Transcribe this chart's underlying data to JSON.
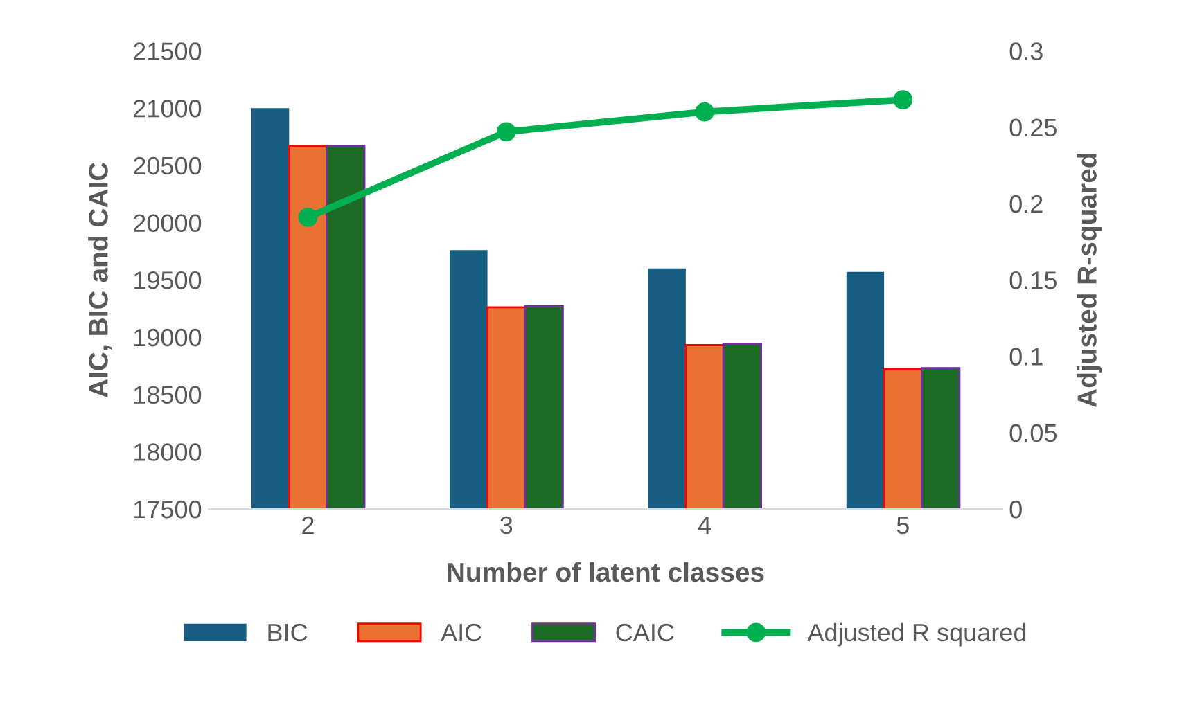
{
  "chart_data": {
    "type": "bar",
    "xlabel": "Number of latent classes",
    "ylabel": "AIC, BIC and CAIC",
    "y2label": "Adjusted R-squared",
    "categories": [
      "2",
      "3",
      "4",
      "5"
    ],
    "series": [
      {
        "name": "BIC",
        "color": "#175e82",
        "values": [
          21000,
          19760,
          19600,
          19570
        ]
      },
      {
        "name": "AIC",
        "color": "#e97132",
        "values": [
          20670,
          19260,
          18930,
          18720
        ]
      },
      {
        "name": "CAIC",
        "color": "#1b6b24",
        "values": [
          20670,
          19270,
          18940,
          18730
        ]
      },
      {
        "name": "Adjusted R squared",
        "type": "line",
        "axis": "y2",
        "color": "#00b050",
        "marker": "circle",
        "values": [
          0.191,
          0.247,
          0.26,
          0.268
        ]
      }
    ],
    "ylim": [
      17500,
      21500
    ],
    "yticks": [
      17500,
      18000,
      18500,
      19000,
      19500,
      20000,
      20500,
      21000,
      21500
    ],
    "y2lim": [
      0,
      0.3
    ],
    "y2ticks": [
      0,
      0.05,
      0.1,
      0.15,
      0.2,
      0.25,
      0.3
    ],
    "grid": false,
    "legend": "bottom"
  }
}
